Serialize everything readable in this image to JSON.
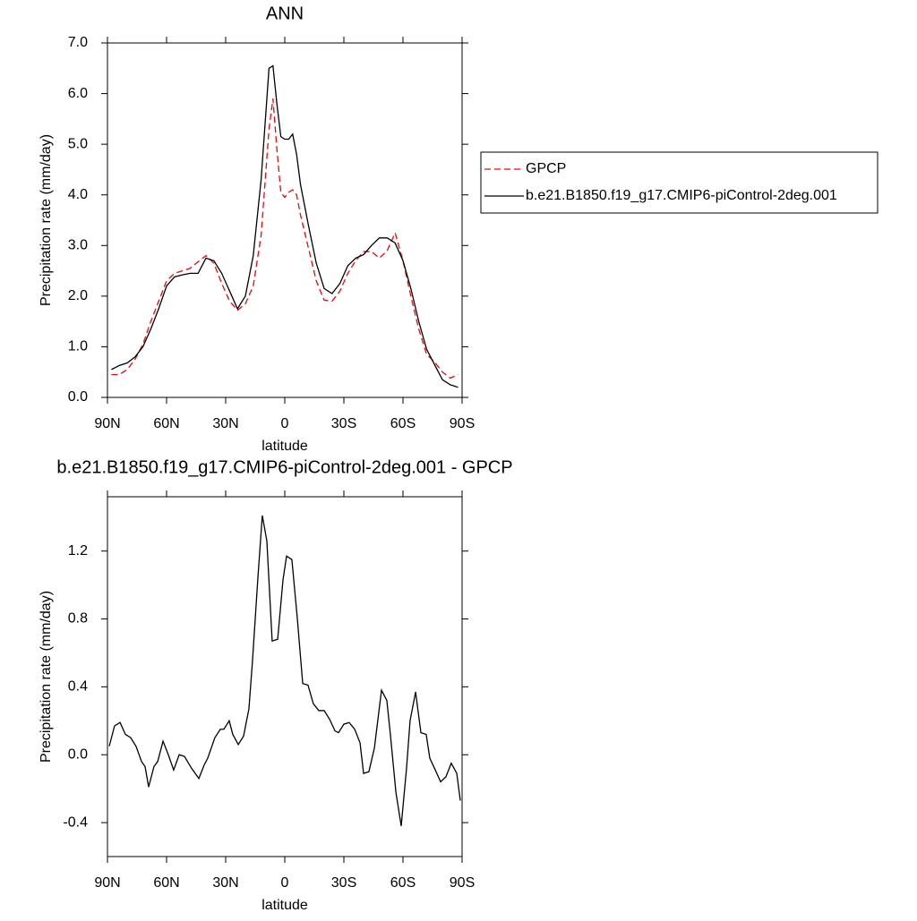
{
  "chart_data": [
    {
      "type": "line",
      "title": "ANN",
      "xlabel": "latitude",
      "ylabel": "Precipitation rate (mm/day)",
      "x": [
        88,
        84,
        80,
        76,
        72,
        68,
        64,
        60,
        56,
        52,
        48,
        44,
        40,
        36,
        32,
        28,
        24,
        20,
        16,
        12,
        8,
        6,
        4,
        2,
        0,
        -2,
        -4,
        -6,
        -8,
        -12,
        -16,
        -20,
        -24,
        -28,
        -32,
        -36,
        -40,
        -44,
        -48,
        -52,
        -56,
        -60,
        -64,
        -68,
        -72,
        -76,
        -80,
        -84,
        -88
      ],
      "series": [
        {
          "name": "GPCP",
          "color": "#ff0000",
          "dashed": true,
          "values": [
            0.45,
            0.45,
            0.55,
            0.75,
            1.05,
            1.5,
            1.9,
            2.3,
            2.45,
            2.5,
            2.55,
            2.68,
            2.8,
            2.65,
            2.25,
            1.9,
            1.72,
            1.85,
            2.2,
            3.2,
            5.3,
            5.9,
            4.9,
            4.05,
            3.95,
            4.05,
            4.1,
            4.0,
            3.6,
            2.95,
            2.3,
            1.92,
            1.9,
            2.1,
            2.45,
            2.7,
            2.88,
            2.88,
            2.75,
            2.9,
            3.25,
            2.7,
            2.0,
            1.35,
            0.85,
            0.7,
            0.5,
            0.38,
            0.45
          ]
        },
        {
          "name": "b.e21.B1850.f19_g17.CMIP6-piControl-2deg.001",
          "color": "#000000",
          "dashed": false,
          "values": [
            0.55,
            0.63,
            0.68,
            0.8,
            1.0,
            1.35,
            1.75,
            2.2,
            2.38,
            2.42,
            2.45,
            2.45,
            2.75,
            2.7,
            2.45,
            2.1,
            1.75,
            2.0,
            2.8,
            4.3,
            6.5,
            6.55,
            5.8,
            5.15,
            5.1,
            5.1,
            5.2,
            4.8,
            4.2,
            3.4,
            2.65,
            2.15,
            2.05,
            2.25,
            2.6,
            2.75,
            2.82,
            3.0,
            3.15,
            3.15,
            3.05,
            2.7,
            2.15,
            1.5,
            0.95,
            0.65,
            0.35,
            0.25,
            0.2
          ]
        }
      ],
      "xlim": [
        90,
        -90
      ],
      "xticks": [
        {
          "value": 90,
          "label": "90N"
        },
        {
          "value": 60,
          "label": "60N"
        },
        {
          "value": 30,
          "label": "30N"
        },
        0,
        {
          "value": -30,
          "label": "30S"
        },
        {
          "value": -60,
          "label": "60S"
        },
        {
          "value": -90,
          "label": "90S"
        }
      ],
      "ylim": [
        0,
        7
      ],
      "yticks": [
        {
          "value": 0,
          "label": "0.0"
        },
        {
          "value": 1,
          "label": "1.0"
        },
        {
          "value": 2,
          "label": "2.0"
        },
        {
          "value": 3,
          "label": "3.0"
        },
        {
          "value": 4,
          "label": "4.0"
        },
        {
          "value": 5,
          "label": "5.0"
        },
        {
          "value": 6,
          "label": "6.0"
        },
        {
          "value": 7,
          "label": "7.0"
        }
      ],
      "legend": "right"
    },
    {
      "type": "line",
      "title": "b.e21.B1850.f19_g17.CMIP6-piControl-2deg.001 - GPCP",
      "xlabel": "latitude",
      "ylabel": "Precipitation rate (mm/day)",
      "x": [
        89.1,
        86.4,
        83.6,
        80.9,
        78.2,
        75.5,
        72.7,
        70.9,
        69.1,
        66.4,
        64.5,
        61.8,
        59.1,
        56.4,
        53.6,
        50.9,
        47.3,
        43.6,
        40.9,
        39.1,
        35.5,
        32.7,
        30.9,
        28.2,
        26.4,
        23.6,
        20.9,
        18.2,
        16.4,
        13.6,
        11.4,
        9.1,
        6.4,
        3.6,
        0.9,
        -0.9,
        -3.6,
        -6.4,
        -9.1,
        -11.8,
        -14.5,
        -17.3,
        -20,
        -22.7,
        -25.5,
        -27.3,
        -30,
        -32.7,
        -35.5,
        -38.2,
        -40,
        -42.7,
        -45.5,
        -49.1,
        -51.8,
        -53.6,
        -56.4,
        -59.1,
        -61.8,
        -63.6,
        -66.4,
        -69.1,
        -71.8,
        -73.6,
        -76.4,
        -79.1,
        -81.8,
        -84.5,
        -87.3,
        -89.1
      ],
      "values": [
        0.05,
        0.17,
        0.19,
        0.12,
        0.1,
        0.05,
        -0.04,
        -0.07,
        -0.19,
        -0.07,
        -0.04,
        0.08,
        0,
        -0.09,
        0,
        -0.01,
        -0.08,
        -0.14,
        -0.06,
        -0.02,
        0.1,
        0.15,
        0.15,
        0.2,
        0.12,
        0.06,
        0.11,
        0.27,
        0.55,
        1.05,
        1.41,
        1.26,
        0.67,
        0.68,
        1.03,
        1.17,
        1.15,
        0.8,
        0.42,
        0.41,
        0.3,
        0.26,
        0.26,
        0.21,
        0.14,
        0.13,
        0.18,
        0.19,
        0.15,
        0.07,
        -0.11,
        -0.1,
        0.04,
        0.38,
        0.32,
        0.12,
        -0.22,
        -0.42,
        -0.08,
        0.2,
        0.37,
        0.13,
        0.12,
        -0.02,
        -0.09,
        -0.16,
        -0.13,
        -0.05,
        -0.11,
        -0.27
      ],
      "color": "#000000",
      "xlim": [
        90,
        -90
      ],
      "xticks": [
        {
          "value": 90,
          "label": "90N"
        },
        {
          "value": 60,
          "label": "60N"
        },
        {
          "value": 30,
          "label": "30N"
        },
        0,
        {
          "value": -30,
          "label": "30S"
        },
        {
          "value": -60,
          "label": "60S"
        },
        {
          "value": -90,
          "label": "90S"
        }
      ],
      "ylim": [
        -0.6,
        1.52
      ],
      "yticks": [
        -0.4,
        {
          "value": 0,
          "label": "0.0"
        },
        0.4,
        0.8,
        1.2
      ]
    }
  ]
}
